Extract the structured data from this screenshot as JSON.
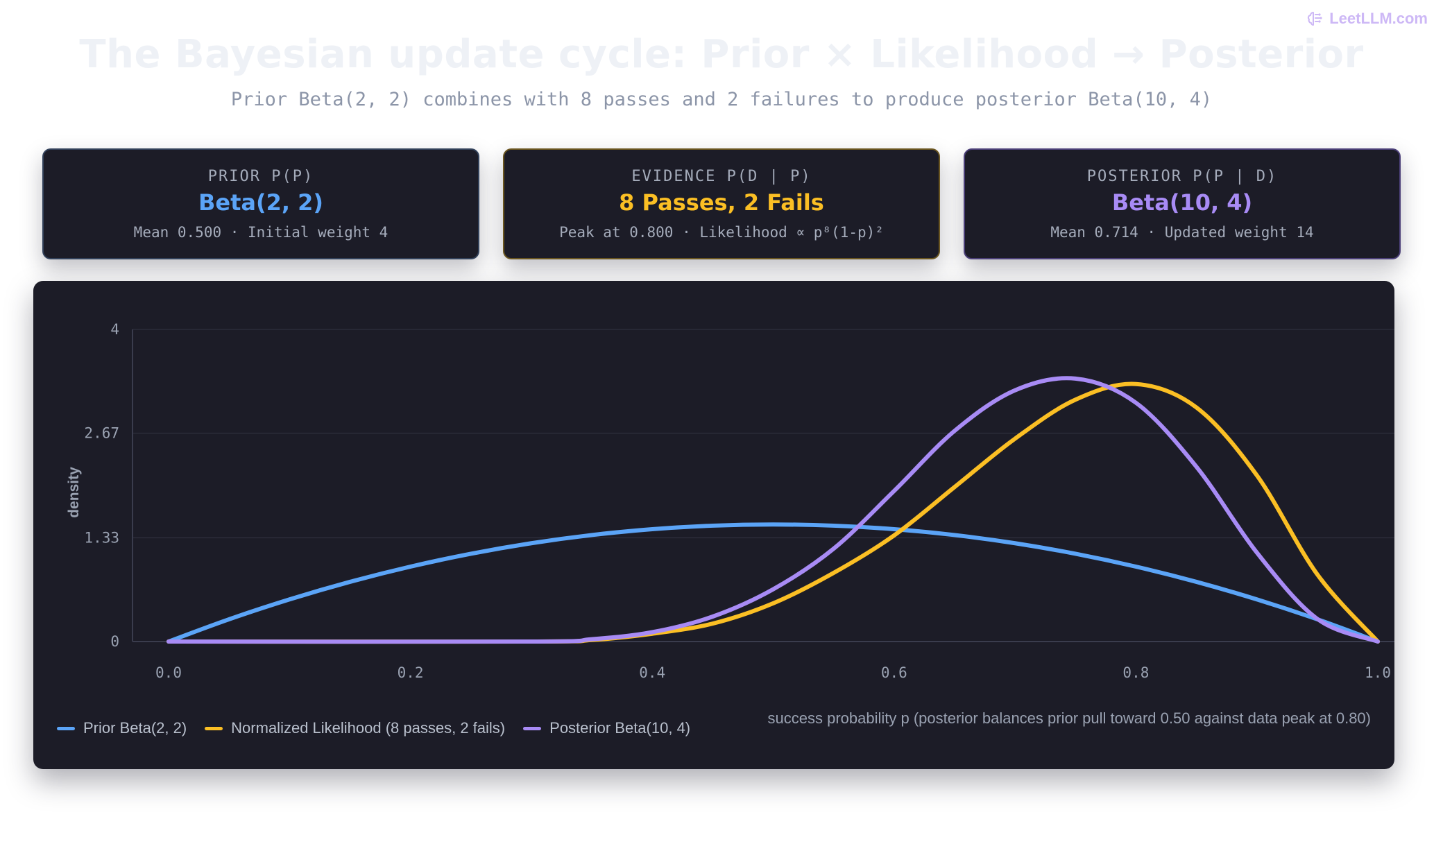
{
  "brand": {
    "name": "LeetLLM.com",
    "icon": "brain-icon",
    "color": "#cdb8f6"
  },
  "header": {
    "title": "The Bayesian update cycle: Prior × Likelihood → Posterior",
    "subtitle": "Prior Beta(2, 2) combines with 8 passes and 2 failures to produce posterior Beta(10, 4)"
  },
  "cards": [
    {
      "key": "PRIOR P(P)",
      "value": "Beta(2, 2)",
      "detail": "Mean 0.500 · Initial weight 4",
      "color": "#5ba4f7"
    },
    {
      "key": "EVIDENCE P(D | P)",
      "value": "8 Passes, 2 Fails",
      "detail": "Peak at 0.800 · Likelihood ∝ p⁸(1-p)²",
      "color": "#fbbf24"
    },
    {
      "key": "POSTERIOR P(P | D)",
      "value": "Beta(10, 4)",
      "detail": "Mean 0.714 · Updated weight 14",
      "color": "#a88bf5"
    }
  ],
  "chart_data": {
    "type": "line",
    "title": "",
    "xlabel": "success probability p (posterior balances prior pull toward 0.50 against data peak at 0.80)",
    "ylabel": "density",
    "xlim": [
      0,
      1
    ],
    "ylim": [
      0,
      4
    ],
    "x_ticks": [
      "0.0",
      "0.2",
      "0.4",
      "0.6",
      "0.8",
      "1.0"
    ],
    "y_ticks": [
      "0",
      "1.33",
      "2.67",
      "4"
    ],
    "grid": true,
    "legend_position": "bottom-left",
    "series": [
      {
        "name": "Prior Beta(2, 2)",
        "color": "#5ba4f7",
        "x": [
          0.0,
          0.05,
          0.1,
          0.15,
          0.2,
          0.25,
          0.3,
          0.35,
          0.4,
          0.45,
          0.5,
          0.55,
          0.6,
          0.65,
          0.7,
          0.75,
          0.8,
          0.85,
          0.9,
          0.95,
          1.0
        ],
        "y": [
          0.0,
          0.285,
          0.54,
          0.765,
          0.96,
          1.125,
          1.26,
          1.365,
          1.44,
          1.485,
          1.5,
          1.485,
          1.44,
          1.365,
          1.26,
          1.125,
          0.96,
          0.765,
          0.54,
          0.285,
          0.0
        ]
      },
      {
        "name": "Normalized Likelihood (8 passes, 2 fails)",
        "color": "#fbbf24",
        "x": [
          0.0,
          0.3,
          0.35,
          0.4,
          0.45,
          0.5,
          0.55,
          0.6,
          0.65,
          0.7,
          0.75,
          0.8,
          0.85,
          0.9,
          0.95,
          1.0
        ],
        "y": [
          0.0,
          0.0,
          0.02,
          0.1,
          0.23,
          0.49,
          0.88,
          1.36,
          1.98,
          2.6,
          3.1,
          3.3,
          3.0,
          2.13,
          0.86,
          0.0
        ]
      },
      {
        "name": "Posterior Beta(10, 4)",
        "color": "#a88bf5",
        "x": [
          0.0,
          0.3,
          0.35,
          0.4,
          0.45,
          0.5,
          0.55,
          0.6,
          0.65,
          0.7,
          0.75,
          0.8,
          0.85,
          0.9,
          0.95,
          1.0
        ],
        "y": [
          0.0,
          0.0,
          0.03,
          0.12,
          0.32,
          0.67,
          1.19,
          1.93,
          2.7,
          3.22,
          3.37,
          3.06,
          2.24,
          1.14,
          0.29,
          0.0
        ]
      }
    ]
  }
}
